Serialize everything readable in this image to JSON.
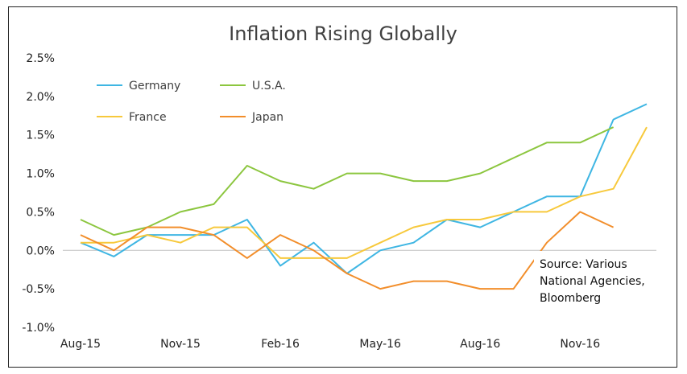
{
  "chart_data": {
    "type": "line",
    "title": "Inflation Rising Globally",
    "xlabel": "",
    "ylabel": "",
    "x": [
      "Aug-15",
      "Sep-15",
      "Oct-15",
      "Nov-15",
      "Dec-15",
      "Jan-16",
      "Feb-16",
      "Mar-16",
      "Apr-16",
      "May-16",
      "Jun-16",
      "Jul-16",
      "Aug-16",
      "Sep-16",
      "Oct-16",
      "Nov-16",
      "Dec-16",
      "Jan-17"
    ],
    "x_tick_labels": [
      "Aug-15",
      "Nov-15",
      "Feb-16",
      "May-16",
      "Aug-16",
      "Nov-16"
    ],
    "y_tick_labels": [
      "2.5%",
      "2.0%",
      "1.5%",
      "1.0%",
      "0.5%",
      "0.0%",
      "-0.5%",
      "-1.0%"
    ],
    "ylim": [
      -1.0,
      2.5
    ],
    "grid": false,
    "legend_position": "top-left",
    "series": [
      {
        "name": "Germany",
        "color": "#3FB6E3",
        "values": [
          0.1,
          -0.08,
          0.2,
          0.2,
          0.2,
          0.4,
          -0.2,
          0.1,
          -0.3,
          0.0,
          0.1,
          0.4,
          0.3,
          0.5,
          0.7,
          0.7,
          1.7,
          1.9
        ]
      },
      {
        "name": "U.S.A.",
        "color": "#8CC63F",
        "values": [
          0.4,
          0.2,
          0.3,
          0.5,
          0.6,
          1.1,
          0.9,
          0.8,
          1.0,
          1.0,
          0.9,
          0.9,
          1.0,
          1.2,
          1.4,
          1.4,
          1.6,
          null
        ]
      },
      {
        "name": "France",
        "color": "#F7C93C",
        "values": [
          0.1,
          0.1,
          0.2,
          0.1,
          0.3,
          0.3,
          -0.1,
          -0.1,
          -0.1,
          0.1,
          0.3,
          0.4,
          0.4,
          0.5,
          0.5,
          0.7,
          0.8,
          1.6
        ]
      },
      {
        "name": "Japan",
        "color": "#F28E2B",
        "values": [
          0.2,
          0.0,
          0.3,
          0.3,
          0.2,
          -0.1,
          0.2,
          0.0,
          -0.3,
          -0.5,
          -0.4,
          -0.4,
          -0.5,
          -0.5,
          0.1,
          0.5,
          0.3,
          null
        ]
      }
    ],
    "annotation": [
      "Source: Various",
      "National Agencies,",
      "Bloomberg"
    ]
  }
}
